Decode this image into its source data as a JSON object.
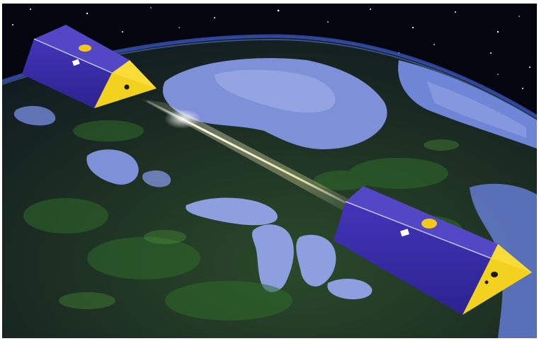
{
  "image": {
    "subjects": [
      "satellite-leading",
      "satellite-trailing",
      "earth",
      "laser-link",
      "starfield"
    ],
    "colors": {
      "space": "#050510",
      "land_dark": "#16241a",
      "land_green": "#2f6a2a",
      "water": "#7d90d8",
      "water_light": "#a8b4ec",
      "atmosphere": "#3b58c8",
      "satellite_body": "#3a2ea8",
      "satellite_top": "#4b3fc0",
      "satellite_face": "#f2d21e",
      "beam": "#fffbe0"
    }
  }
}
